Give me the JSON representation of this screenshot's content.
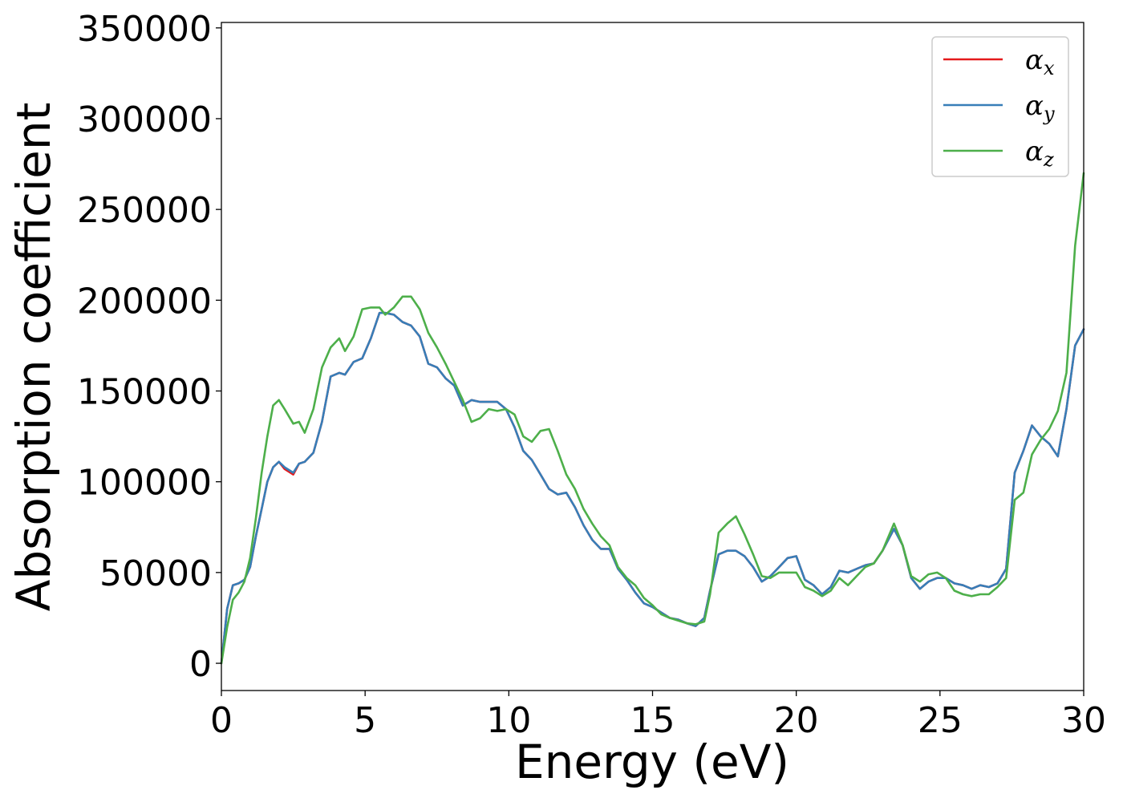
{
  "chart_data": {
    "type": "line",
    "title": "",
    "xlabel": "Energy (eV)",
    "ylabel": "Absorption coefficient",
    "xlim": [
      0,
      30
    ],
    "ylim": [
      -15000,
      353000
    ],
    "x_ticks": [
      0,
      5,
      10,
      15,
      20,
      25,
      30
    ],
    "x_tick_labels": [
      "0",
      "5",
      "10",
      "15",
      "20",
      "25",
      "30"
    ],
    "y_ticks": [
      0,
      50000,
      100000,
      150000,
      200000,
      250000,
      300000,
      350000
    ],
    "y_tick_labels": [
      "0",
      "50000",
      "100000",
      "150000",
      "200000",
      "250000",
      "300000",
      "350000"
    ],
    "grid": false,
    "legend_position": "top-right",
    "series": [
      {
        "name": "α_x",
        "legend_base": "α",
        "legend_sub": "x",
        "color": "#e41a1c",
        "x": [
          0,
          0.2,
          0.4,
          0.6,
          0.8,
          1.0,
          1.2,
          1.4,
          1.6,
          1.8,
          2.0,
          2.2,
          2.5,
          2.7,
          2.9,
          3.2,
          3.5,
          3.8,
          4.1,
          4.3,
          4.6,
          4.9,
          5.2,
          5.5,
          5.7,
          6.0,
          6.3,
          6.6,
          6.9,
          7.2,
          7.5,
          7.8,
          8.1,
          8.4,
          8.7,
          9.0,
          9.3,
          9.6,
          9.9,
          10.2,
          10.5,
          10.8,
          11.1,
          11.4,
          11.7,
          12.0,
          12.3,
          12.6,
          12.9,
          13.2,
          13.5,
          13.8,
          14.1,
          14.4,
          14.7,
          15.0,
          15.3,
          15.6,
          15.9,
          16.2,
          16.5,
          16.8,
          17.0,
          17.3,
          17.6,
          17.9,
          18.2,
          18.5,
          18.8,
          19.1,
          19.4,
          19.7,
          20.0,
          20.3,
          20.6,
          20.9,
          21.2,
          21.5,
          21.8,
          22.1,
          22.4,
          22.7,
          23.0,
          23.4,
          23.7,
          24.0,
          24.3,
          24.6,
          24.9,
          25.2,
          25.5,
          25.8,
          26.1,
          26.4,
          26.7,
          27.0,
          27.3,
          27.6,
          27.9,
          28.2,
          28.5,
          28.8,
          29.1,
          29.4,
          29.7,
          30.0
        ],
        "values": [
          0,
          30000,
          43000,
          44000,
          46000,
          53000,
          70000,
          85000,
          100000,
          108000,
          111000,
          107000,
          104000,
          110000,
          111000,
          116000,
          133000,
          158000,
          160000,
          159000,
          166000,
          168000,
          179000,
          193000,
          193000,
          192000,
          188000,
          186000,
          180000,
          165000,
          163000,
          157000,
          153000,
          142000,
          145000,
          144000,
          144000,
          144000,
          140000,
          130000,
          117000,
          112000,
          104000,
          96000,
          93000,
          94000,
          86000,
          76000,
          68000,
          63000,
          63000,
          52000,
          46000,
          39000,
          33000,
          31000,
          28000,
          25000,
          24000,
          22000,
          20500,
          25000,
          40000,
          60000,
          62000,
          62000,
          59000,
          53000,
          45000,
          48000,
          53000,
          58000,
          59000,
          46000,
          43000,
          38000,
          42000,
          51000,
          50000,
          52000,
          54000,
          55000,
          62000,
          74000,
          65000,
          47000,
          41000,
          45000,
          47000,
          47000,
          44000,
          43000,
          41000,
          43000,
          42000,
          44000,
          52000,
          105000,
          117000,
          131000,
          125000,
          121000,
          114000,
          140000,
          175000,
          184000
        ]
      },
      {
        "name": "α_y",
        "legend_base": "α",
        "legend_sub": "y",
        "color": "#377eb8",
        "x": [
          0,
          0.2,
          0.4,
          0.6,
          0.8,
          1.0,
          1.2,
          1.4,
          1.6,
          1.8,
          2.0,
          2.2,
          2.5,
          2.7,
          2.9,
          3.2,
          3.5,
          3.8,
          4.1,
          4.3,
          4.6,
          4.9,
          5.2,
          5.5,
          5.7,
          6.0,
          6.3,
          6.6,
          6.9,
          7.2,
          7.5,
          7.8,
          8.1,
          8.4,
          8.7,
          9.0,
          9.3,
          9.6,
          9.9,
          10.2,
          10.5,
          10.8,
          11.1,
          11.4,
          11.7,
          12.0,
          12.3,
          12.6,
          12.9,
          13.2,
          13.5,
          13.8,
          14.1,
          14.4,
          14.7,
          15.0,
          15.3,
          15.6,
          15.9,
          16.2,
          16.5,
          16.8,
          17.0,
          17.3,
          17.6,
          17.9,
          18.2,
          18.5,
          18.8,
          19.1,
          19.4,
          19.7,
          20.0,
          20.3,
          20.6,
          20.9,
          21.2,
          21.5,
          21.8,
          22.1,
          22.4,
          22.7,
          23.0,
          23.4,
          23.7,
          24.0,
          24.3,
          24.6,
          24.9,
          25.2,
          25.5,
          25.8,
          26.1,
          26.4,
          26.7,
          27.0,
          27.3,
          27.6,
          27.9,
          28.2,
          28.5,
          28.8,
          29.1,
          29.4,
          29.7,
          30.0
        ],
        "values": [
          0,
          30000,
          43000,
          44000,
          46000,
          53000,
          70000,
          85000,
          100000,
          108000,
          111000,
          108000,
          105000,
          110000,
          111000,
          116000,
          133000,
          158000,
          160000,
          159000,
          166000,
          168000,
          179000,
          193000,
          193000,
          192000,
          188000,
          186000,
          180000,
          165000,
          163000,
          157000,
          153000,
          142000,
          145000,
          144000,
          144000,
          144000,
          140000,
          130000,
          117000,
          112000,
          104000,
          96000,
          93000,
          94000,
          86000,
          76000,
          68000,
          63000,
          63000,
          52000,
          46000,
          39000,
          33000,
          31000,
          28000,
          25000,
          24000,
          22000,
          20500,
          25000,
          40000,
          60000,
          62000,
          62000,
          59000,
          53000,
          45000,
          48000,
          53000,
          58000,
          59000,
          46000,
          43000,
          38000,
          42000,
          51000,
          50000,
          52000,
          54000,
          55000,
          62000,
          74000,
          65000,
          47000,
          41000,
          45000,
          47000,
          47000,
          44000,
          43000,
          41000,
          43000,
          42000,
          44000,
          52000,
          105000,
          117000,
          131000,
          125000,
          121000,
          114000,
          140000,
          175000,
          184000
        ]
      },
      {
        "name": "α_z",
        "legend_base": "α",
        "legend_sub": "z",
        "color": "#4daf4a",
        "x": [
          0,
          0.2,
          0.4,
          0.6,
          0.8,
          1.0,
          1.2,
          1.4,
          1.6,
          1.8,
          2.0,
          2.2,
          2.5,
          2.7,
          2.9,
          3.2,
          3.5,
          3.8,
          4.1,
          4.3,
          4.6,
          4.9,
          5.2,
          5.5,
          5.7,
          6.0,
          6.3,
          6.6,
          6.9,
          7.2,
          7.5,
          7.8,
          8.1,
          8.4,
          8.7,
          9.0,
          9.3,
          9.6,
          9.9,
          10.2,
          10.5,
          10.8,
          11.1,
          11.4,
          11.7,
          12.0,
          12.3,
          12.6,
          12.9,
          13.2,
          13.5,
          13.8,
          14.1,
          14.4,
          14.7,
          15.0,
          15.3,
          15.6,
          15.9,
          16.2,
          16.5,
          16.8,
          17.0,
          17.3,
          17.6,
          17.9,
          18.2,
          18.5,
          18.8,
          19.1,
          19.4,
          19.7,
          20.0,
          20.3,
          20.6,
          20.9,
          21.2,
          21.5,
          21.8,
          22.1,
          22.4,
          22.7,
          23.0,
          23.4,
          23.7,
          24.0,
          24.3,
          24.6,
          24.9,
          25.2,
          25.5,
          25.8,
          26.1,
          26.4,
          26.7,
          27.0,
          27.3,
          27.6,
          27.9,
          28.2,
          28.5,
          28.8,
          29.1,
          29.4,
          29.7,
          30.0
        ],
        "values": [
          0,
          20000,
          35000,
          39000,
          45000,
          58000,
          80000,
          105000,
          125000,
          142000,
          145000,
          140000,
          132000,
          133000,
          127000,
          140000,
          163000,
          174000,
          179000,
          172000,
          180000,
          195000,
          196000,
          196000,
          192000,
          196000,
          202000,
          202000,
          195000,
          182000,
          174000,
          165000,
          155000,
          145000,
          133000,
          135000,
          140000,
          139000,
          140000,
          137000,
          125000,
          122000,
          128000,
          129000,
          117000,
          104000,
          96000,
          85000,
          77000,
          70000,
          65000,
          53000,
          47000,
          43000,
          36000,
          32000,
          27000,
          25000,
          23500,
          22000,
          21500,
          23000,
          38000,
          72000,
          77000,
          81000,
          71000,
          60000,
          48000,
          47000,
          50000,
          50000,
          50000,
          42000,
          40000,
          37000,
          40000,
          47000,
          43000,
          48000,
          53000,
          55000,
          62000,
          77000,
          65000,
          48000,
          45000,
          49000,
          50000,
          47000,
          40000,
          38000,
          37000,
          38000,
          38000,
          42000,
          47000,
          90000,
          94000,
          115000,
          123000,
          129000,
          139000,
          160000,
          230000,
          270000
        ]
      }
    ]
  }
}
